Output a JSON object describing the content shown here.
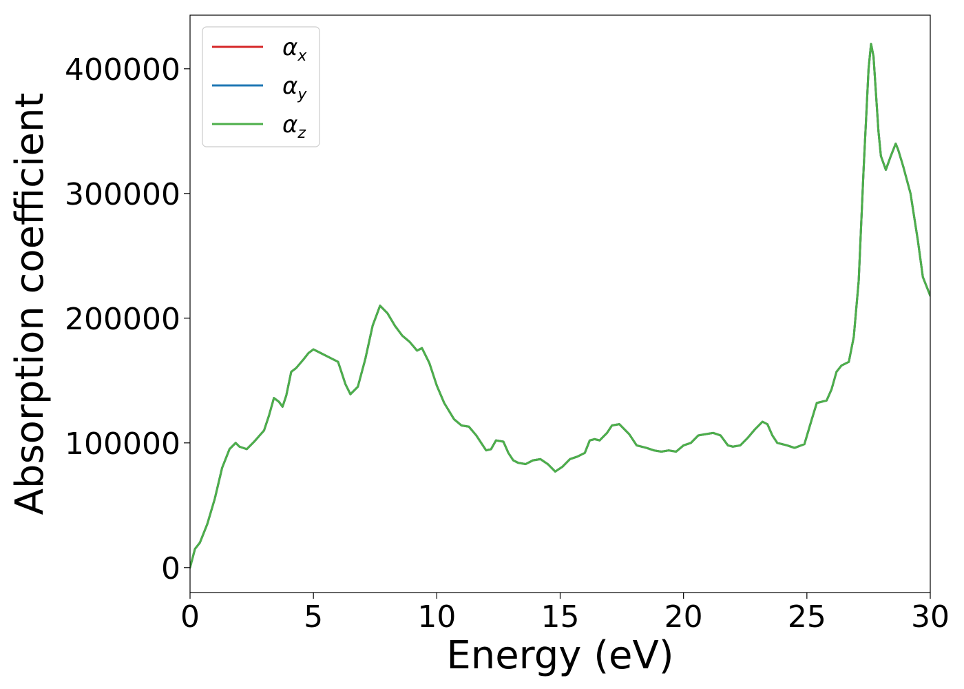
{
  "chart_data": {
    "type": "line",
    "xlabel": "Energy (eV)",
    "ylabel": "Absorption coefficient",
    "xlim": [
      0,
      30
    ],
    "ylim": [
      -20000,
      443000
    ],
    "xticks": [
      0,
      5,
      10,
      15,
      20,
      25,
      30
    ],
    "yticks": [
      0,
      100000,
      200000,
      300000,
      400000
    ],
    "grid": false,
    "legend_position": "top-left",
    "x": [
      0,
      0.2,
      0.4,
      0.7,
      1.0,
      1.3,
      1.6,
      1.85,
      2.0,
      2.3,
      2.6,
      3.0,
      3.2,
      3.4,
      3.6,
      3.75,
      3.9,
      4.1,
      4.3,
      4.6,
      4.8,
      5.0,
      5.3,
      5.6,
      6.0,
      6.3,
      6.5,
      6.8,
      7.1,
      7.4,
      7.7,
      8.0,
      8.3,
      8.6,
      8.9,
      9.2,
      9.4,
      9.7,
      10.0,
      10.3,
      10.7,
      11.0,
      11.3,
      11.6,
      12.0,
      12.2,
      12.4,
      12.7,
      12.9,
      13.1,
      13.3,
      13.6,
      13.9,
      14.2,
      14.5,
      14.8,
      15.1,
      15.4,
      15.7,
      16.0,
      16.2,
      16.4,
      16.6,
      16.9,
      17.1,
      17.4,
      17.8,
      18.1,
      18.5,
      18.8,
      19.1,
      19.4,
      19.7,
      20.0,
      20.3,
      20.6,
      20.9,
      21.2,
      21.5,
      21.8,
      22.0,
      22.3,
      22.6,
      22.9,
      23.2,
      23.4,
      23.6,
      23.8,
      24.2,
      24.5,
      24.9,
      25.2,
      25.4,
      25.6,
      25.8,
      26.0,
      26.2,
      26.4,
      26.7,
      26.9,
      27.1,
      27.3,
      27.5,
      27.6,
      27.7,
      27.8,
      27.9,
      28.0,
      28.2,
      28.4,
      28.6,
      28.7,
      28.9,
      29.2,
      29.5,
      29.7,
      30.0
    ],
    "series": [
      {
        "name": "αx",
        "color": "#d62728",
        "values": [
          0,
          15000,
          20000,
          35000,
          55000,
          80000,
          95000,
          100000,
          97000,
          95000,
          101000,
          110000,
          122000,
          136000,
          133000,
          129000,
          138000,
          157000,
          160000,
          167000,
          172000,
          175000,
          172000,
          169000,
          165000,
          147000,
          139000,
          145000,
          167000,
          194000,
          210000,
          204000,
          194000,
          186000,
          181000,
          174000,
          176000,
          164000,
          146000,
          132000,
          119000,
          114000,
          113000,
          106000,
          94000,
          95000,
          102000,
          101000,
          92000,
          86000,
          84000,
          83000,
          86000,
          87000,
          83000,
          77000,
          81000,
          87000,
          89000,
          92000,
          102000,
          103000,
          102000,
          108000,
          114000,
          115000,
          107000,
          98000,
          96000,
          94000,
          93000,
          94000,
          93000,
          98000,
          100000,
          106000,
          107000,
          108000,
          106000,
          98000,
          97000,
          98000,
          104000,
          111000,
          117000,
          115000,
          106000,
          100000,
          98000,
          96000,
          99000,
          119000,
          132000,
          133000,
          134000,
          143000,
          157000,
          162000,
          165000,
          185000,
          230000,
          320000,
          400000,
          420000,
          410000,
          380000,
          350000,
          330000,
          319000,
          330000,
          340000,
          335000,
          322000,
          300000,
          262000,
          233000,
          218000
        ]
      },
      {
        "name": "αy",
        "color": "#1f77b4",
        "values": [
          0,
          15000,
          20000,
          35000,
          55000,
          80000,
          95000,
          100000,
          97000,
          95000,
          101000,
          110000,
          122000,
          136000,
          133000,
          129000,
          138000,
          157000,
          160000,
          167000,
          172000,
          175000,
          172000,
          169000,
          165000,
          147000,
          139000,
          145000,
          167000,
          194000,
          210000,
          204000,
          194000,
          186000,
          181000,
          174000,
          176000,
          164000,
          146000,
          132000,
          119000,
          114000,
          113000,
          106000,
          94000,
          95000,
          102000,
          101000,
          92000,
          86000,
          84000,
          83000,
          86000,
          87000,
          83000,
          77000,
          81000,
          87000,
          89000,
          92000,
          102000,
          103000,
          102000,
          108000,
          114000,
          115000,
          107000,
          98000,
          96000,
          94000,
          93000,
          94000,
          93000,
          98000,
          100000,
          106000,
          107000,
          108000,
          106000,
          98000,
          97000,
          98000,
          104000,
          111000,
          117000,
          115000,
          106000,
          100000,
          98000,
          96000,
          99000,
          119000,
          132000,
          133000,
          134000,
          143000,
          157000,
          162000,
          165000,
          185000,
          230000,
          320000,
          400000,
          420000,
          410000,
          380000,
          350000,
          330000,
          319000,
          330000,
          340000,
          335000,
          322000,
          300000,
          262000,
          233000,
          218000
        ]
      },
      {
        "name": "αz",
        "color": "#4daf4a",
        "values": [
          0,
          15000,
          20000,
          35000,
          55000,
          80000,
          95000,
          100000,
          97000,
          95000,
          101000,
          110000,
          122000,
          136000,
          133000,
          129000,
          138000,
          157000,
          160000,
          167000,
          172000,
          175000,
          172000,
          169000,
          165000,
          147000,
          139000,
          145000,
          167000,
          194000,
          210000,
          204000,
          194000,
          186000,
          181000,
          174000,
          176000,
          164000,
          146000,
          132000,
          119000,
          114000,
          113000,
          106000,
          94000,
          95000,
          102000,
          101000,
          92000,
          86000,
          84000,
          83000,
          86000,
          87000,
          83000,
          77000,
          81000,
          87000,
          89000,
          92000,
          102000,
          103000,
          102000,
          108000,
          114000,
          115000,
          107000,
          98000,
          96000,
          94000,
          93000,
          94000,
          93000,
          98000,
          100000,
          106000,
          107000,
          108000,
          106000,
          98000,
          97000,
          98000,
          104000,
          111000,
          117000,
          115000,
          106000,
          100000,
          98000,
          96000,
          99000,
          119000,
          132000,
          133000,
          134000,
          143000,
          157000,
          162000,
          165000,
          185000,
          230000,
          320000,
          400000,
          420000,
          410000,
          380000,
          350000,
          330000,
          319000,
          330000,
          340000,
          335000,
          322000,
          300000,
          262000,
          233000,
          218000
        ]
      }
    ],
    "legend": [
      {
        "symbol": "α",
        "subscript": "x",
        "color": "#d62728"
      },
      {
        "symbol": "α",
        "subscript": "y",
        "color": "#1f77b4"
      },
      {
        "symbol": "α",
        "subscript": "z",
        "color": "#4daf4a"
      }
    ]
  }
}
